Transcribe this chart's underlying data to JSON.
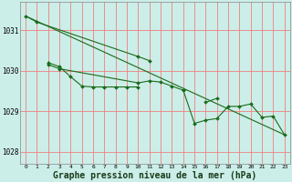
{
  "background_color": "#cceee8",
  "grid_color": "#f08080",
  "line_color": "#1a6b1a",
  "marker_color": "#1a6b1a",
  "xlabel": "Graphe pression niveau de la mer (hPa)",
  "xlabel_fontsize": 7,
  "xlim": [
    -0.5,
    23.5
  ],
  "ylim": [
    1027.7,
    1031.7
  ],
  "yticks": [
    1028,
    1029,
    1030,
    1031
  ],
  "xticks": [
    0,
    1,
    2,
    3,
    4,
    5,
    6,
    7,
    8,
    9,
    10,
    11,
    12,
    13,
    14,
    15,
    16,
    17,
    18,
    19,
    20,
    21,
    22,
    23
  ],
  "series": [
    {
      "x": [
        0,
        1,
        10,
        11
      ],
      "y": [
        1031.35,
        1031.2,
        1030.35,
        1030.25
      ]
    },
    {
      "x": [
        2,
        3,
        4,
        5,
        6,
        7,
        8,
        9,
        10
      ],
      "y": [
        1030.2,
        1030.1,
        1029.85,
        1029.62,
        1029.6,
        1029.6,
        1029.6,
        1029.6,
        1029.6
      ]
    },
    {
      "x": [
        2,
        3,
        10,
        11,
        12,
        13,
        14
      ],
      "y": [
        1030.15,
        1030.05,
        1029.7,
        1029.75,
        1029.72,
        1029.62,
        1029.52
      ]
    },
    {
      "x": [
        14,
        15,
        16,
        17,
        18,
        19,
        20,
        21,
        22,
        23
      ],
      "y": [
        1029.52,
        1028.7,
        1028.78,
        1028.82,
        1029.12,
        1029.12,
        1029.18,
        1028.85,
        1028.88,
        1028.42
      ]
    },
    {
      "x": [
        16,
        17
      ],
      "y": [
        1029.22,
        1029.32
      ]
    }
  ],
  "long_line": {
    "x": [
      0,
      23
    ],
    "y": [
      1031.35,
      1028.42
    ]
  }
}
